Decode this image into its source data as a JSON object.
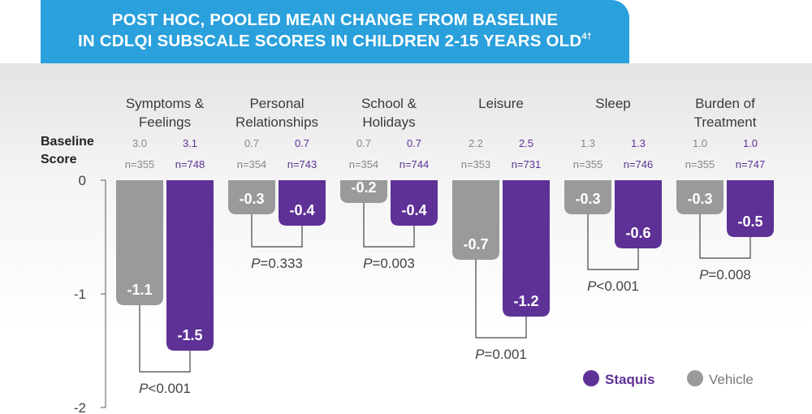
{
  "title": {
    "line1": "POST HOC, POOLED MEAN CHANGE FROM BASELINE",
    "line2": "IN CDLQI SUBSCALE SCORES IN CHILDREN 2-15 YEARS OLD",
    "superscript": "4†"
  },
  "baseline_label": [
    "Baseline",
    "Score"
  ],
  "colors": {
    "staquis": "#5e3196",
    "vehicle": "#9a9a9c",
    "banner": "#2aa0dc",
    "axis": "#555555"
  },
  "chart_data": {
    "type": "bar",
    "title": "POST HOC, POOLED MEAN CHANGE FROM BASELINE IN CDLQI SUBSCALE SCORES IN CHILDREN 2-15 YEARS OLD4†",
    "ylim": [
      -2,
      0
    ],
    "yticks": [
      "0",
      "-1",
      "-2"
    ],
    "legend": {
      "position": "bottom-right",
      "entries": [
        "Staquis",
        "Vehicle"
      ]
    },
    "categories": [
      {
        "name": [
          "Symptoms &",
          "Feelings"
        ],
        "baseline": [
          "3.0",
          "3.1"
        ],
        "n": [
          "n=355",
          "n=748"
        ],
        "values": [
          -1.1,
          -1.5
        ],
        "labels": [
          "-1.1",
          "-1.5"
        ],
        "p_prefix": "<0.001"
      },
      {
        "name": [
          "Personal",
          "Relationships"
        ],
        "baseline": [
          "0.7",
          "0.7"
        ],
        "n": [
          "n=354",
          "n=743"
        ],
        "values": [
          -0.3,
          -0.4
        ],
        "labels": [
          "-0.3",
          "-0.4"
        ],
        "p_prefix": "=0.333"
      },
      {
        "name": [
          "School &",
          "Holidays"
        ],
        "baseline": [
          "0.7",
          "0.7"
        ],
        "n": [
          "n=354",
          "n=744"
        ],
        "values": [
          -0.2,
          -0.4
        ],
        "labels": [
          "-0.2",
          "-0.4"
        ],
        "p_prefix": "=0.003"
      },
      {
        "name": [
          "Leisure"
        ],
        "baseline": [
          "2.2",
          "2.5"
        ],
        "n": [
          "n=353",
          "n=731"
        ],
        "values": [
          -0.7,
          -1.2
        ],
        "labels": [
          "-0.7",
          "-1.2"
        ],
        "p_prefix": "=0.001"
      },
      {
        "name": [
          "Sleep"
        ],
        "baseline": [
          "1.3",
          "1.3"
        ],
        "n": [
          "n=355",
          "n=746"
        ],
        "values": [
          -0.3,
          -0.6
        ],
        "labels": [
          "-0.3",
          "-0.6"
        ],
        "p_prefix": "<0.001"
      },
      {
        "name": [
          "Burden of",
          "Treatment"
        ],
        "baseline": [
          "1.0",
          "1.0"
        ],
        "n": [
          "n=355",
          "n=747"
        ],
        "values": [
          -0.3,
          -0.5
        ],
        "labels": [
          "-0.3",
          "-0.5"
        ],
        "p_prefix": "=0.008"
      }
    ],
    "series": [
      {
        "name": "Vehicle",
        "color": "#9a9a9c"
      },
      {
        "name": "Staquis",
        "color": "#5e3196"
      }
    ]
  }
}
